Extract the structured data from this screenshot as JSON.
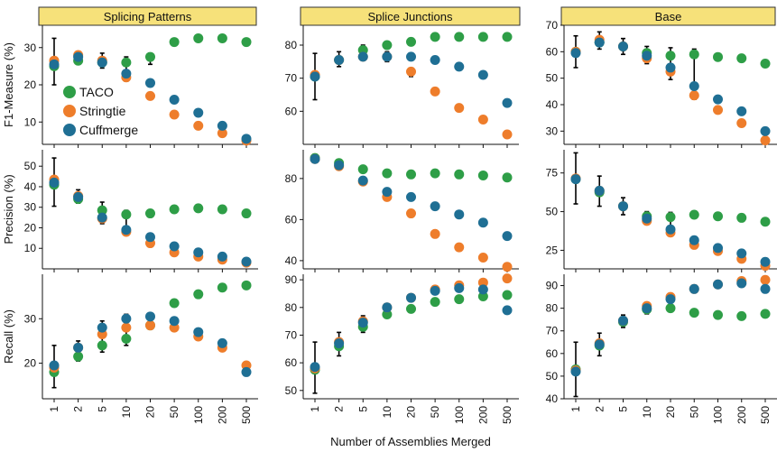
{
  "chart_data": {
    "type": "scatter",
    "xlabel": "Number of Assemblies Merged",
    "categories": [
      "1",
      "2",
      "5",
      "10",
      "20",
      "50",
      "100",
      "200",
      "500"
    ],
    "legend": {
      "placement": "inside-top-left-panel",
      "entries": [
        {
          "name": "TACO",
          "color": "#2e9e47"
        },
        {
          "name": "Stringtie",
          "color": "#ee7d2b"
        },
        {
          "name": "Cuffmerge",
          "color": "#1f6f94"
        }
      ]
    },
    "columns": [
      "Splicing Patterns",
      "Splice Junctions",
      "Base"
    ],
    "rows": [
      "F1-Measure (%)",
      "Precision (%)",
      "Recall (%)"
    ],
    "panels": [
      [
        {
          "ylim": [
            4,
            36
          ],
          "yticks": [
            10,
            20,
            30
          ],
          "series": {
            "TACO": [
              25,
              26.5,
              26,
              26,
              27.5,
              31.5,
              32.5,
              32.5,
              31.5
            ],
            "Stringtie": [
              26.5,
              28,
              26.5,
              22,
              17,
              12,
              9,
              7,
              5
            ],
            "Cuffmerge": [
              25.5,
              27.5,
              26,
              23,
              20.5,
              16,
              12.5,
              9,
              5.5
            ]
          },
          "errors": [
            {
              "x": 0,
              "low": 20,
              "high": 32.5
            },
            {
              "x": 1,
              "low": 25.5,
              "high": 29
            },
            {
              "x": 2,
              "low": 24.5,
              "high": 28.5
            },
            {
              "x": 3,
              "low": 21,
              "high": 27.5
            },
            {
              "x": 4,
              "low": 25.5,
              "high": 28.5
            }
          ]
        },
        {
          "ylim": [
            50,
            86
          ],
          "yticks": [
            60,
            70,
            80
          ],
          "series": {
            "TACO": [
              70.5,
              75.5,
              78.5,
              80,
              81,
              82.5,
              82.5,
              82.5,
              82.5
            ],
            "Stringtie": [
              71,
              75.5,
              76.5,
              76.5,
              72,
              66,
              61,
              57.5,
              53
            ],
            "Cuffmerge": [
              70.5,
              75.5,
              76.5,
              76.5,
              76.5,
              75.5,
              73.5,
              71,
              62.5
            ]
          },
          "errors": [
            {
              "x": 0,
              "low": 63.5,
              "high": 77.5
            },
            {
              "x": 1,
              "low": 73.5,
              "high": 78
            },
            {
              "x": 2,
              "low": 75.5,
              "high": 80
            },
            {
              "x": 3,
              "low": 75,
              "high": 78
            },
            {
              "x": 4,
              "low": 70.5,
              "high": 73
            }
          ]
        },
        {
          "ylim": [
            25,
            70
          ],
          "yticks": [
            30,
            40,
            50,
            60,
            70
          ],
          "series": {
            "TACO": [
              60,
              63.5,
              62,
              59.5,
              58.5,
              59,
              58,
              57.5,
              55.5
            ],
            "Stringtie": [
              60,
              64.5,
              62,
              57.5,
              52.5,
              43.5,
              38,
              33,
              26.5
            ],
            "Cuffmerge": [
              59.5,
              63.5,
              62,
              58.5,
              54,
              47,
              42,
              37.5,
              30
            ]
          },
          "errors": [
            {
              "x": 0,
              "low": 54,
              "high": 66
            },
            {
              "x": 1,
              "low": 61,
              "high": 67.5
            },
            {
              "x": 2,
              "low": 59,
              "high": 65
            },
            {
              "x": 3,
              "low": 55.5,
              "high": 62
            },
            {
              "x": 4,
              "low": 49.5,
              "high": 61.5
            },
            {
              "x": 5,
              "low": 42,
              "high": 61
            }
          ]
        }
      ],
      [
        {
          "ylim": [
            0,
            58
          ],
          "yticks": [
            10,
            20,
            30,
            40,
            50
          ],
          "series": {
            "TACO": [
              41,
              34,
              28.5,
              26.5,
              27,
              29,
              29.5,
              29,
              27
            ],
            "Stringtie": [
              43.5,
              35.5,
              24.5,
              18,
              12.5,
              8,
              6,
              4.5,
              3
            ],
            "Cuffmerge": [
              42,
              35,
              25,
              19,
              15.5,
              11,
              8,
              6,
              3.5
            ]
          },
          "errors": [
            {
              "x": 0,
              "low": 30.5,
              "high": 54
            },
            {
              "x": 1,
              "low": 32,
              "high": 38.5
            },
            {
              "x": 2,
              "low": 22,
              "high": 32.5
            },
            {
              "x": 3,
              "low": 16.5,
              "high": 28.5
            }
          ]
        },
        {
          "ylim": [
            36,
            94
          ],
          "yticks": [
            40,
            60,
            80
          ],
          "series": {
            "TACO": [
              90,
              87.5,
              84.5,
              82.5,
              82,
              82.5,
              82,
              81.5,
              80.5
            ],
            "Stringtie": [
              89.5,
              86,
              78.5,
              71,
              63,
              53,
              46.5,
              41.5,
              37
            ],
            "Cuffmerge": [
              89.5,
              86.5,
              79,
              73.5,
              71,
              66.5,
              62.5,
              58.5,
              52
            ]
          },
          "errors": [
            {
              "x": 0,
              "low": 88.5,
              "high": 91.5
            },
            {
              "x": 1,
              "low": 85,
              "high": 88.5
            },
            {
              "x": 2,
              "low": 77.5,
              "high": 80.5
            },
            {
              "x": 3,
              "low": 69.5,
              "high": 73
            },
            {
              "x": 4,
              "low": 61.5,
              "high": 64.5
            }
          ]
        },
        {
          "ylim": [
            13,
            90
          ],
          "yticks": [
            25,
            50,
            75
          ],
          "series": {
            "TACO": [
              71,
              62.5,
              53.5,
              47,
              46.5,
              48,
              47,
              46,
              43.5
            ],
            "Stringtie": [
              71.5,
              63.5,
              53.5,
              44,
              36.5,
              28.5,
              24.5,
              19.5,
              15
            ],
            "Cuffmerge": [
              71,
              63.5,
              53.5,
              45.5,
              38.5,
              31.5,
              26.5,
              23,
              17.5
            ]
          },
          "errors": [
            {
              "x": 0,
              "low": 55,
              "high": 88
            },
            {
              "x": 1,
              "low": 53.5,
              "high": 73
            },
            {
              "x": 2,
              "low": 48,
              "high": 59
            },
            {
              "x": 3,
              "low": 42,
              "high": 50
            },
            {
              "x": 4,
              "low": 35,
              "high": 49.5
            }
          ]
        }
      ],
      [
        {
          "ylim": [
            12,
            40
          ],
          "yticks": [
            20,
            30
          ],
          "series": {
            "TACO": [
              18,
              21.5,
              24,
              25.5,
              28.5,
              33.5,
              35.5,
              37,
              37.5
            ],
            "Stringtie": [
              19,
              23.5,
              26.5,
              28,
              28.5,
              28,
              26,
              23.5,
              19.5
            ],
            "Cuffmerge": [
              19.5,
              23.5,
              28,
              30,
              30.5,
              29.5,
              27,
              24.5,
              18
            ]
          },
          "errors": [
            {
              "x": 0,
              "low": 14.5,
              "high": 24
            },
            {
              "x": 1,
              "low": 20.5,
              "high": 25
            },
            {
              "x": 2,
              "low": 22.5,
              "high": 29.5
            },
            {
              "x": 3,
              "low": 24,
              "high": 31
            }
          ]
        },
        {
          "ylim": [
            47,
            92
          ],
          "yticks": [
            50,
            60,
            70,
            80,
            90
          ],
          "series": {
            "TACO": [
              57.5,
              66,
              73,
              77.5,
              79.5,
              82,
              83,
              84,
              84.5
            ],
            "Stringtie": [
              58,
              67.5,
              75,
              80,
              83.5,
              86.5,
              88,
              89,
              90.5
            ],
            "Cuffmerge": [
              58.5,
              67,
              74.5,
              80,
              83.5,
              86,
              87,
              86.5,
              79
            ]
          },
          "errors": [
            {
              "x": 0,
              "low": 49,
              "high": 67.5
            },
            {
              "x": 1,
              "low": 62.5,
              "high": 71
            },
            {
              "x": 2,
              "low": 71,
              "high": 77
            },
            {
              "x": 3,
              "low": 77.5,
              "high": 81
            }
          ]
        },
        {
          "ylim": [
            40,
            95
          ],
          "yticks": [
            40,
            50,
            60,
            70,
            80,
            90
          ],
          "series": {
            "TACO": [
              53,
              63.5,
              74,
              79.5,
              80,
              78,
              77,
              76.5,
              77.5
            ],
            "Stringtie": [
              52.5,
              64.5,
              74.5,
              81,
              85,
              88.5,
              90.5,
              92,
              92.5
            ],
            "Cuffmerge": [
              52,
              64,
              74.5,
              80,
              84,
              88.5,
              90.5,
              91,
              88.5
            ]
          },
          "errors": [
            {
              "x": 0,
              "low": 41,
              "high": 65
            },
            {
              "x": 1,
              "low": 59,
              "high": 69
            },
            {
              "x": 2,
              "low": 71.5,
              "high": 77
            },
            {
              "x": 3,
              "low": 77.5,
              "high": 81.5
            }
          ]
        }
      ]
    ]
  }
}
